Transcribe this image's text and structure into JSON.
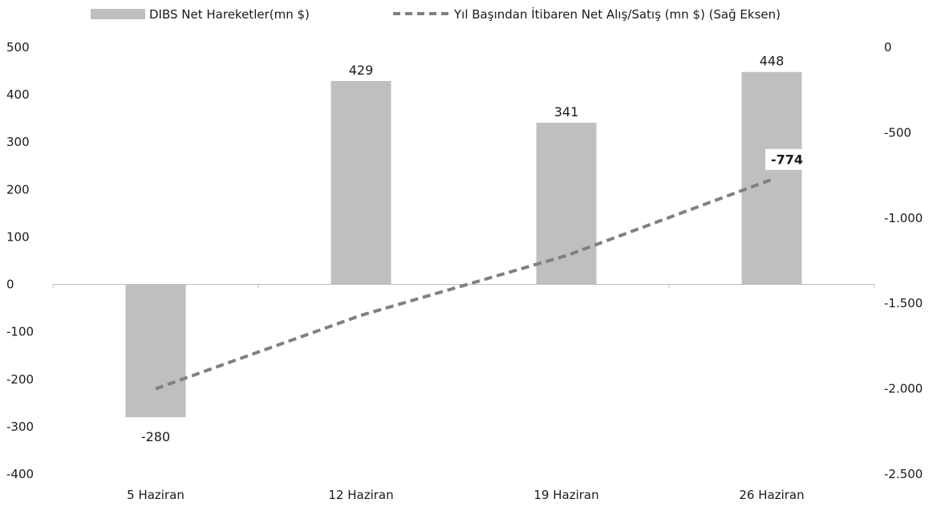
{
  "chart_data": {
    "type": "bar",
    "categories": [
      "5 Haziran",
      "12 Haziran",
      "19 Haziran",
      "26 Haziran"
    ],
    "series": [
      {
        "name": "DIBS Net Hareketler(mn $)",
        "type": "bar",
        "axis": "left",
        "values": [
          -280,
          429,
          341,
          448
        ],
        "color": "#bfbfbf",
        "labels": [
          "-280",
          "429",
          "341",
          "448"
        ]
      },
      {
        "name": "Yıl Başından İtibaren Net Alış/Satış (mn $) (Sağ Eksen)",
        "type": "line",
        "axis": "right",
        "style": "dashed",
        "values": [
          -2000,
          -1570,
          -1220,
          -774
        ],
        "color": "#808080",
        "last_label": "-774"
      }
    ],
    "left_axis": {
      "ylim": [
        -400,
        500
      ],
      "ticks": [
        500,
        400,
        300,
        200,
        100,
        0,
        -100,
        -200,
        -300,
        -400
      ],
      "tick_labels": [
        "500",
        "400",
        "300",
        "200",
        "100",
        "0",
        "-100",
        "-200",
        "-300",
        "-400"
      ]
    },
    "right_axis": {
      "ylim": [
        -2500,
        0
      ],
      "ticks": [
        0,
        -500,
        -1000,
        -1500,
        -2000,
        -2500
      ],
      "tick_labels": [
        "0",
        "-500",
        "-1.000",
        "-1.500",
        "-2.000",
        "-2.500"
      ]
    },
    "legend_position": "top",
    "grid": false
  }
}
